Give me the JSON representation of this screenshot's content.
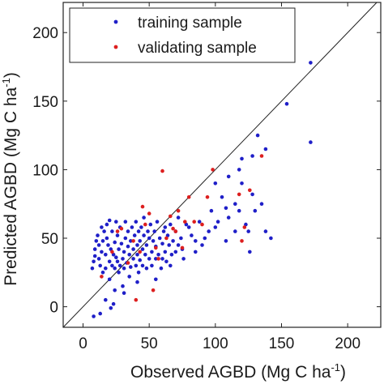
{
  "chart_data": {
    "type": "scatter",
    "xlabel": {
      "main": "Observed AGBD (Mg C ha",
      "sup": "-1",
      "end": ")"
    },
    "ylabel": {
      "main": "Predicted AGBD (Mg C ha",
      "sup": "-1",
      "end": ")"
    },
    "xlim": [
      -15,
      225
    ],
    "ylim": [
      -15,
      222
    ],
    "xticks": [
      0,
      50,
      100,
      150,
      200
    ],
    "yticks": [
      0,
      50,
      100,
      150,
      200
    ],
    "reference_line": "1:1",
    "grid": false,
    "legend_position": "top-left",
    "series": [
      {
        "name": "training sample",
        "color": "#1f1fc8",
        "points": [
          [
            8,
            -7
          ],
          [
            13,
            -5
          ],
          [
            17,
            5
          ],
          [
            21,
            -1
          ],
          [
            23,
            2
          ],
          [
            7,
            28
          ],
          [
            8,
            33
          ],
          [
            9,
            37
          ],
          [
            9,
            42
          ],
          [
            10,
            48
          ],
          [
            11,
            52
          ],
          [
            12,
            35
          ],
          [
            12,
            45
          ],
          [
            13,
            30
          ],
          [
            14,
            40
          ],
          [
            15,
            25
          ],
          [
            15,
            48
          ],
          [
            16,
            55
          ],
          [
            17,
            28
          ],
          [
            17,
            38
          ],
          [
            18,
            50
          ],
          [
            19,
            45
          ],
          [
            20,
            20
          ],
          [
            20,
            33
          ],
          [
            21,
            42
          ],
          [
            22,
            30
          ],
          [
            22,
            55
          ],
          [
            23,
            38
          ],
          [
            24,
            28
          ],
          [
            24,
            47
          ],
          [
            25,
            36
          ],
          [
            26,
            33
          ],
          [
            26,
            52
          ],
          [
            27,
            25
          ],
          [
            27,
            42
          ],
          [
            28,
            30
          ],
          [
            28,
            58
          ],
          [
            29,
            46
          ],
          [
            30,
            15
          ],
          [
            30,
            35
          ],
          [
            31,
            40
          ],
          [
            31,
            28
          ],
          [
            32,
            50
          ],
          [
            32,
            62
          ],
          [
            33,
            32
          ],
          [
            34,
            44
          ],
          [
            34,
            55
          ],
          [
            35,
            22
          ],
          [
            35,
            38
          ],
          [
            36,
            29
          ],
          [
            36,
            48
          ],
          [
            37,
            58
          ],
          [
            38,
            35
          ],
          [
            38,
            42
          ],
          [
            39,
            52
          ],
          [
            40,
            30
          ],
          [
            40,
            62
          ],
          [
            41,
            45
          ],
          [
            41,
            38
          ],
          [
            42,
            25
          ],
          [
            42,
            55
          ],
          [
            43,
            48
          ],
          [
            43,
            34
          ],
          [
            44,
            58
          ],
          [
            45,
            30
          ],
          [
            45,
            42
          ],
          [
            46,
            65
          ],
          [
            46,
            52
          ],
          [
            47,
            38
          ],
          [
            48,
            45
          ],
          [
            48,
            28
          ],
          [
            49,
            55
          ],
          [
            50,
            35
          ],
          [
            50,
            50
          ],
          [
            51,
            60
          ],
          [
            52,
            40
          ],
          [
            52,
            30
          ],
          [
            53,
            48
          ],
          [
            54,
            55
          ],
          [
            55,
            35
          ],
          [
            55,
            44
          ],
          [
            56,
            62
          ],
          [
            57,
            38
          ],
          [
            58,
            50
          ],
          [
            59,
            28
          ],
          [
            60,
            46
          ],
          [
            61,
            55
          ],
          [
            62,
            40
          ],
          [
            63,
            33
          ],
          [
            64,
            52
          ],
          [
            65,
            45
          ],
          [
            66,
            60
          ],
          [
            67,
            38
          ],
          [
            68,
            48
          ],
          [
            70,
            55
          ],
          [
            72,
            65
          ],
          [
            74,
            50
          ],
          [
            75,
            42
          ],
          [
            78,
            60
          ],
          [
            80,
            58
          ],
          [
            82,
            52
          ],
          [
            85,
            48
          ],
          [
            88,
            62
          ],
          [
            90,
            45
          ],
          [
            95,
            55
          ],
          [
            97,
            70
          ],
          [
            100,
            58
          ],
          [
            102,
            62
          ],
          [
            105,
            80
          ],
          [
            108,
            72
          ],
          [
            110,
            65
          ],
          [
            115,
            75
          ],
          [
            118,
            70
          ],
          [
            120,
            90
          ],
          [
            123,
            60
          ],
          [
            125,
            55
          ],
          [
            128,
            82
          ],
          [
            130,
            70
          ],
          [
            135,
            75
          ],
          [
            138,
            55
          ],
          [
            142,
            50
          ],
          [
            100,
            90
          ],
          [
            110,
            95
          ],
          [
            118,
            100
          ],
          [
            120,
            108
          ],
          [
            128,
            110
          ],
          [
            132,
            125
          ],
          [
            138,
            115
          ],
          [
            154,
            148
          ],
          [
            172,
            178
          ],
          [
            172,
            120
          ],
          [
            18,
            60
          ],
          [
            24,
            12
          ],
          [
            31,
            10
          ],
          [
            41,
            18
          ],
          [
            25,
            62
          ],
          [
            20,
            63
          ],
          [
            14,
            58
          ],
          [
            55,
            20
          ],
          [
            60,
            35
          ],
          [
            66,
            30
          ],
          [
            70,
            40
          ],
          [
            76,
            35
          ],
          [
            85,
            40
          ],
          [
            92,
            50
          ],
          [
            108,
            48
          ],
          [
            115,
            55
          ],
          [
            126,
            40
          ],
          [
            62,
            58
          ],
          [
            72,
            45
          ]
        ]
      },
      {
        "name": "validating sample",
        "color": "#dd1f1f",
        "points": [
          [
            14,
            22
          ],
          [
            22,
            40
          ],
          [
            26,
            55
          ],
          [
            34,
            32
          ],
          [
            38,
            48
          ],
          [
            43,
            40
          ],
          [
            45,
            73
          ],
          [
            47,
            60
          ],
          [
            50,
            68
          ],
          [
            55,
            43
          ],
          [
            57,
            35
          ],
          [
            60,
            99
          ],
          [
            63,
            50
          ],
          [
            66,
            66
          ],
          [
            68,
            57
          ],
          [
            70,
            55
          ],
          [
            72,
            70
          ],
          [
            75,
            43
          ],
          [
            77,
            62
          ],
          [
            80,
            80
          ],
          [
            84,
            62
          ],
          [
            90,
            60
          ],
          [
            94,
            80
          ],
          [
            98,
            100
          ],
          [
            118,
            82
          ],
          [
            120,
            48
          ],
          [
            122,
            58
          ],
          [
            126,
            85
          ],
          [
            135,
            110
          ],
          [
            29,
            57
          ],
          [
            40,
            5
          ],
          [
            53,
            12
          ]
        ]
      }
    ]
  }
}
